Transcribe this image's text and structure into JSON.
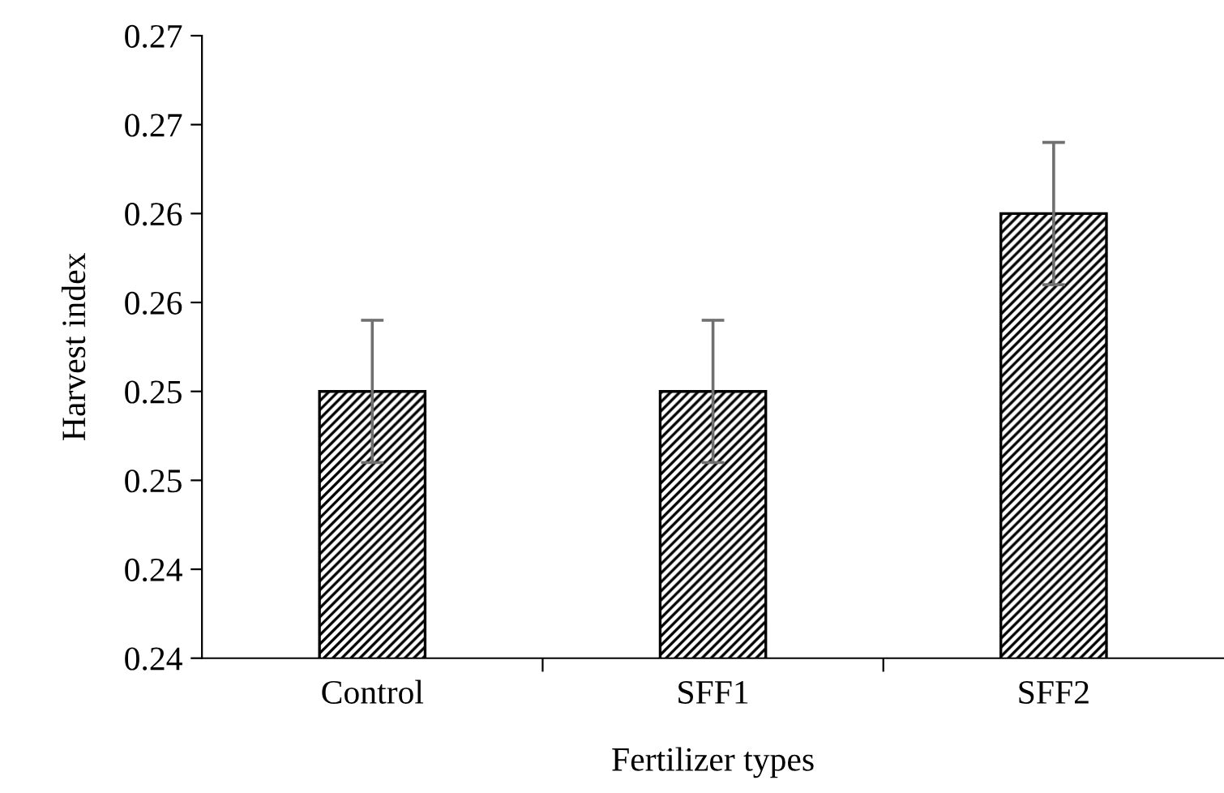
{
  "chart_data": {
    "type": "bar",
    "xlabel": "Fertilizer types",
    "ylabel": "Harvest index",
    "categories": [
      "Control",
      "SFF1",
      "SFF2"
    ],
    "values": [
      0.25,
      0.25,
      0.26
    ],
    "errors": [
      0.004,
      0.004,
      0.004
    ],
    "color": "#000000",
    "ylim": [
      0.235,
      0.27
    ],
    "yticks": [
      {
        "value": 0.235,
        "label": "0.24"
      },
      {
        "value": 0.24,
        "label": "0.24"
      },
      {
        "value": 0.245,
        "label": "0.25"
      },
      {
        "value": 0.25,
        "label": "0.25"
      },
      {
        "value": 0.255,
        "label": "0.26"
      },
      {
        "value": 0.26,
        "label": "0.26"
      },
      {
        "value": 0.265,
        "label": "0.27"
      },
      {
        "value": 0.27,
        "label": "0.27"
      }
    ],
    "grid": false
  }
}
